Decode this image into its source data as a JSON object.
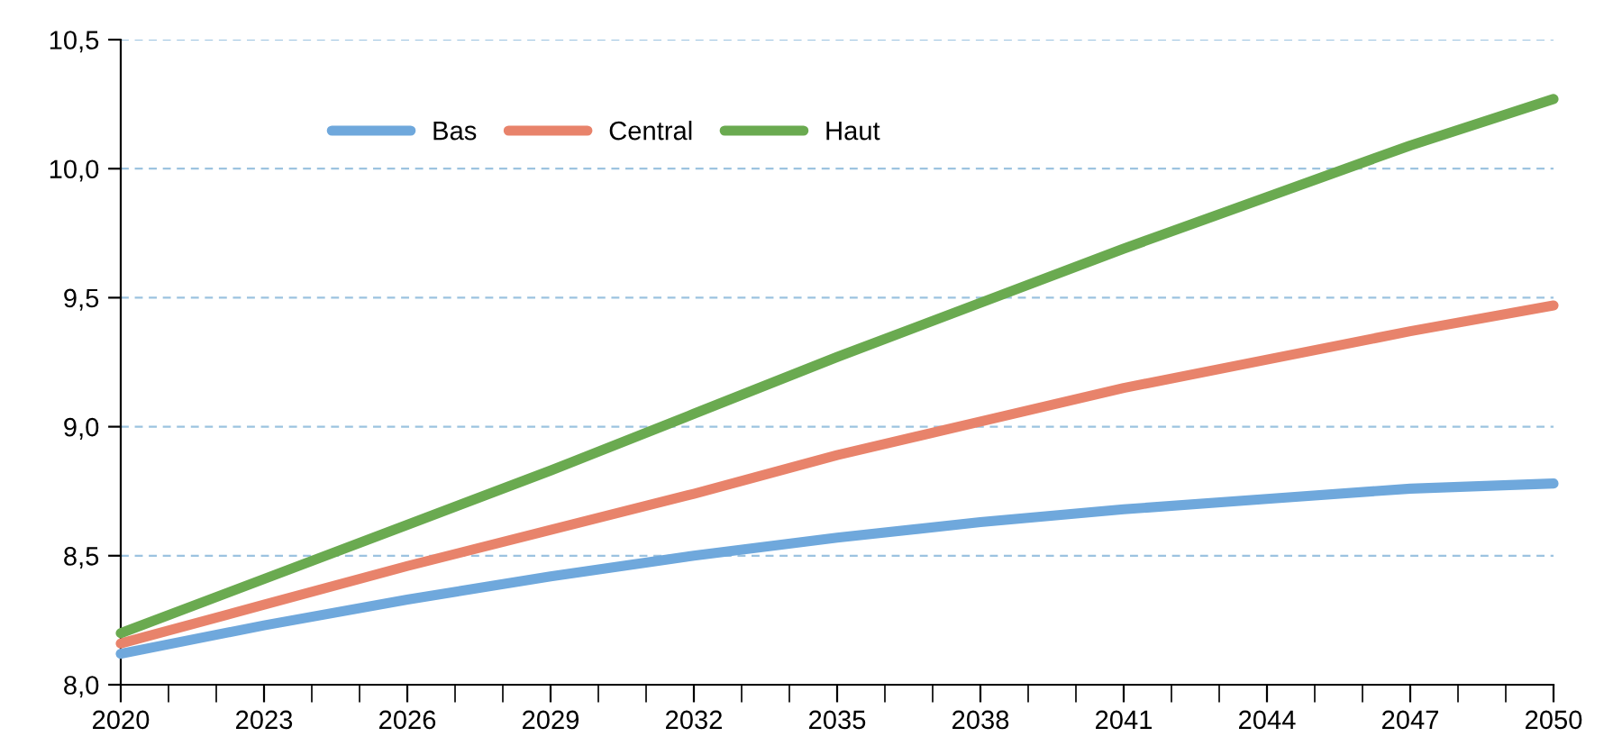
{
  "chart_data": {
    "type": "line",
    "x": [
      2020,
      2023,
      2026,
      2029,
      2032,
      2035,
      2038,
      2041,
      2044,
      2047,
      2050
    ],
    "series": [
      {
        "name": "Bas",
        "color": "#6fa8dc",
        "values": [
          8.12,
          8.23,
          8.33,
          8.42,
          8.5,
          8.57,
          8.63,
          8.68,
          8.72,
          8.76,
          8.78
        ]
      },
      {
        "name": "Central",
        "color": "#e8836b",
        "values": [
          8.16,
          8.31,
          8.46,
          8.6,
          8.74,
          8.89,
          9.02,
          9.15,
          9.26,
          9.37,
          9.47
        ]
      },
      {
        "name": "Haut",
        "color": "#6aaa50",
        "values": [
          8.2,
          8.41,
          8.62,
          8.83,
          9.05,
          9.27,
          9.48,
          9.69,
          9.89,
          10.09,
          10.27
        ]
      }
    ],
    "xlim": [
      2020,
      2050
    ],
    "xticks": [
      2020,
      {
        "value": 2021,
        "label": null
      },
      {
        "value": 2022,
        "label": null
      },
      2023,
      {
        "value": 2024,
        "label": null
      },
      {
        "value": 2025,
        "label": null
      },
      2026,
      {
        "value": 2027,
        "label": null
      },
      {
        "value": 2028,
        "label": null
      },
      2029,
      {
        "value": 2030,
        "label": null
      },
      {
        "value": 2031,
        "label": null
      },
      2032,
      {
        "value": 2033,
        "label": null
      },
      {
        "value": 2034,
        "label": null
      },
      2035,
      {
        "value": 2036,
        "label": null
      },
      {
        "value": 2037,
        "label": null
      },
      2038,
      {
        "value": 2039,
        "label": null
      },
      {
        "value": 2040,
        "label": null
      },
      2041,
      {
        "value": 2042,
        "label": null
      },
      {
        "value": 2043,
        "label": null
      },
      2044,
      {
        "value": 2045,
        "label": null
      },
      {
        "value": 2046,
        "label": null
      },
      2047,
      {
        "value": 2048,
        "label": null
      },
      {
        "value": 2049,
        "label": null
      },
      2050
    ],
    "ylim": [
      8.0,
      10.5
    ],
    "yticks": [
      {
        "value": 8.0,
        "label": "8,0"
      },
      {
        "value": 8.5,
        "label": "8,5"
      },
      {
        "value": 9.0,
        "label": "9,0"
      },
      {
        "value": 9.5,
        "label": "9,5"
      },
      {
        "value": 10.0,
        "label": "10,0"
      },
      {
        "value": 10.5,
        "label": "10,5"
      }
    ],
    "grid": "y",
    "legend": "top left",
    "marker": "none",
    "line_style": "solid"
  }
}
